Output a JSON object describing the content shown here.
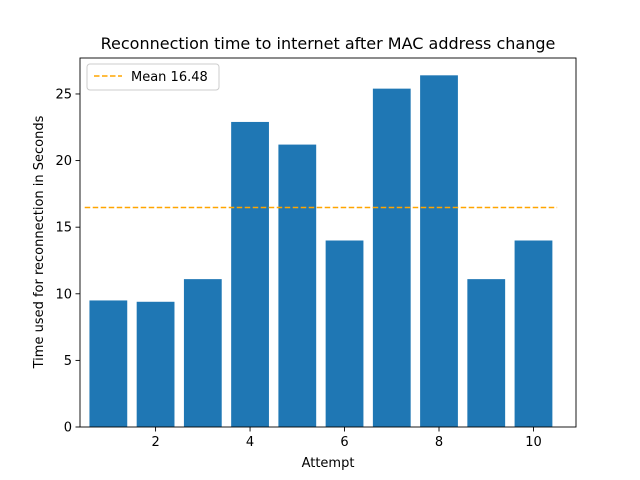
{
  "chart_data": {
    "type": "bar",
    "title": "Reconnection time to internet after MAC address change",
    "xlabel": "Attempt",
    "ylabel": "Time used for reconnection in Seconds",
    "x": [
      1,
      2,
      3,
      4,
      5,
      6,
      7,
      8,
      9,
      10
    ],
    "values": [
      9.5,
      9.4,
      11.1,
      22.9,
      21.2,
      14.0,
      25.4,
      26.4,
      11.1,
      14.0
    ],
    "xlim": [
      0.4,
      10.9
    ],
    "ylim": [
      0,
      27.7
    ],
    "xticks": [
      2,
      4,
      6,
      8,
      10
    ],
    "yticks": [
      0,
      5,
      10,
      15,
      20,
      25
    ],
    "mean_line": {
      "value": 16.48,
      "label": "Mean 16.48",
      "style": "dashed",
      "color": "#ffa500",
      "x_range": [
        0.5,
        10.5
      ]
    },
    "bar_color": "#1f77b4",
    "grid": false,
    "legend": {
      "position": "top-left",
      "entries": [
        "Mean 16.48"
      ]
    }
  }
}
